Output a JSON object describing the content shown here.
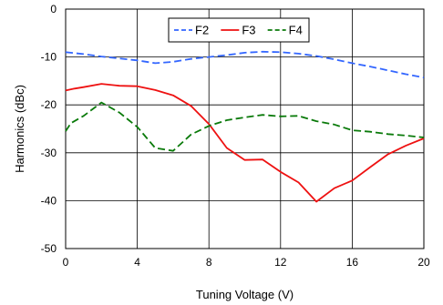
{
  "chart_data": {
    "type": "line",
    "xlabel": "Tuning Voltage (V)",
    "ylabel": "Harmonics (dBc)",
    "xlim": [
      0,
      20
    ],
    "ylim": [
      -50,
      0
    ],
    "xticks": [
      0,
      4,
      8,
      12,
      16,
      20
    ],
    "yticks": [
      0,
      -10,
      -20,
      -30,
      -40,
      -50
    ],
    "grid": true,
    "legend_position": "top-right",
    "series": [
      {
        "name": "F2",
        "color": "#3366ff",
        "dash": "dash",
        "x": [
          0,
          1,
          2,
          3,
          4,
          5,
          6,
          7,
          8,
          9,
          10,
          11,
          12,
          13,
          14,
          15,
          16,
          17,
          18,
          19,
          20
        ],
        "y": [
          -9.0,
          -9.4,
          -9.9,
          -10.3,
          -10.7,
          -11.3,
          -11.0,
          -10.4,
          -10.0,
          -9.6,
          -9.1,
          -8.9,
          -9.0,
          -9.3,
          -9.8,
          -10.5,
          -11.3,
          -12.0,
          -12.8,
          -13.6,
          -14.3
        ]
      },
      {
        "name": "F3",
        "color": "#ee1111",
        "dash": "solid",
        "x": [
          0,
          0.5,
          1,
          2,
          3,
          4,
          5,
          6,
          7,
          8,
          9,
          10,
          11,
          12,
          13,
          14,
          15,
          16,
          17,
          18,
          19,
          20
        ],
        "y": [
          -17.0,
          -16.6,
          -16.3,
          -15.6,
          -16.0,
          -16.1,
          -16.9,
          -18.0,
          -20.2,
          -24.0,
          -29.0,
          -31.5,
          -31.4,
          -34.0,
          -36.2,
          -40.2,
          -37.4,
          -35.8,
          -33.0,
          -30.3,
          -28.5,
          -27.0
        ]
      },
      {
        "name": "F4",
        "color": "#0a7a0a",
        "dash": "dash",
        "x": [
          0,
          0.3,
          1,
          2,
          3,
          4,
          5,
          6,
          7,
          8,
          9,
          10,
          11,
          12,
          13,
          14,
          15,
          16,
          17,
          18,
          19,
          20
        ],
        "y": [
          -25.5,
          -23.8,
          -22.3,
          -19.5,
          -21.6,
          -24.6,
          -29.0,
          -29.6,
          -26.2,
          -24.4,
          -23.2,
          -22.6,
          -22.1,
          -22.4,
          -22.3,
          -23.4,
          -24.1,
          -25.3,
          -25.6,
          -26.1,
          -26.4,
          -26.8
        ]
      }
    ]
  }
}
